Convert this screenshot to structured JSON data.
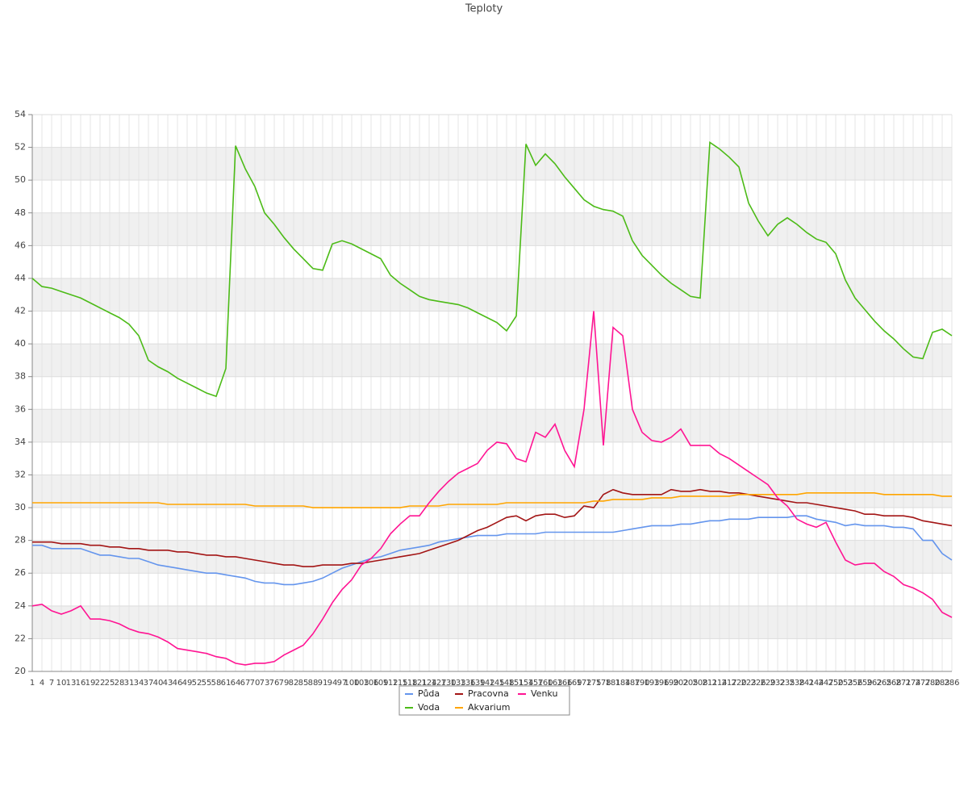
{
  "chart_data": {
    "type": "line",
    "title": "Teploty",
    "categories": [
      1,
      4,
      7,
      10,
      13,
      16,
      19,
      22,
      25,
      28,
      31,
      34,
      37,
      40,
      43,
      46,
      49,
      52,
      55,
      58,
      61,
      64,
      67,
      70,
      73,
      76,
      79,
      82,
      85,
      88,
      91,
      94,
      97,
      100,
      103,
      106,
      109,
      112,
      115,
      118,
      121,
      124,
      127,
      130,
      133,
      136,
      139,
      142,
      145,
      148,
      151,
      154,
      157,
      160,
      163,
      166,
      169,
      172,
      175,
      178,
      181,
      184,
      187,
      190,
      193,
      196,
      199,
      202,
      205,
      208,
      211,
      214,
      217,
      220,
      223,
      226,
      229,
      232,
      235,
      238,
      241,
      244,
      247,
      250,
      253,
      256,
      259,
      262,
      265,
      268,
      271,
      274,
      277,
      280,
      283,
      286
    ],
    "series": [
      {
        "name": "Půda",
        "color": "#6495ed",
        "values": [
          27.7,
          27.7,
          27.5,
          27.5,
          27.5,
          27.5,
          27.3,
          27.1,
          27.1,
          27.0,
          26.9,
          26.9,
          26.7,
          26.5,
          26.4,
          26.3,
          26.2,
          26.1,
          26.0,
          26.0,
          25.9,
          25.8,
          25.7,
          25.5,
          25.4,
          25.4,
          25.3,
          25.3,
          25.4,
          25.5,
          25.7,
          26.0,
          26.3,
          26.5,
          26.7,
          26.9,
          27.0,
          27.2,
          27.4,
          27.5,
          27.6,
          27.7,
          27.9,
          28.0,
          28.1,
          28.2,
          28.3,
          28.3,
          28.3,
          28.4,
          28.4,
          28.4,
          28.4,
          28.5,
          28.5,
          28.5,
          28.5,
          28.5,
          28.5,
          28.5,
          28.5,
          28.6,
          28.7,
          28.8,
          28.9,
          28.9,
          28.9,
          29.0,
          29.0,
          29.1,
          29.2,
          29.2,
          29.3,
          29.3,
          29.3,
          29.4,
          29.4,
          29.4,
          29.4,
          29.5,
          29.5,
          29.3,
          29.2,
          29.1,
          28.9,
          29.0,
          28.9,
          28.9,
          28.9,
          28.8,
          28.8,
          28.7,
          28.0,
          28.0,
          27.2,
          26.8
        ]
      },
      {
        "name": "Voda",
        "color": "#4cbb17",
        "values": [
          44.0,
          43.5,
          43.4,
          43.2,
          43.0,
          42.8,
          42.5,
          42.2,
          41.9,
          41.6,
          41.2,
          40.5,
          39.0,
          38.6,
          38.3,
          37.9,
          37.6,
          37.3,
          37.0,
          36.8,
          38.5,
          52.1,
          50.7,
          49.6,
          48.0,
          47.3,
          46.5,
          45.8,
          45.2,
          44.6,
          44.5,
          46.1,
          46.3,
          46.1,
          45.8,
          45.5,
          45.2,
          44.2,
          43.7,
          43.3,
          42.9,
          42.7,
          42.6,
          42.5,
          42.4,
          42.2,
          41.9,
          41.6,
          41.3,
          40.8,
          41.7,
          52.2,
          50.9,
          51.6,
          51.0,
          50.2,
          49.5,
          48.8,
          48.4,
          48.2,
          48.1,
          47.8,
          46.3,
          45.4,
          44.8,
          44.2,
          43.7,
          43.3,
          42.9,
          42.8,
          52.3,
          51.9,
          51.4,
          50.8,
          48.6,
          47.5,
          46.6,
          47.3,
          47.7,
          47.3,
          46.8,
          46.4,
          46.2,
          45.5,
          43.9,
          42.8,
          42.1,
          41.4,
          40.8,
          40.3,
          39.7,
          39.2,
          39.1,
          40.7,
          40.9,
          40.5
        ]
      },
      {
        "name": "Pracovna",
        "color": "#a31515",
        "values": [
          27.9,
          27.9,
          27.9,
          27.8,
          27.8,
          27.8,
          27.7,
          27.7,
          27.6,
          27.6,
          27.5,
          27.5,
          27.4,
          27.4,
          27.4,
          27.3,
          27.3,
          27.2,
          27.1,
          27.1,
          27.0,
          27.0,
          26.9,
          26.8,
          26.7,
          26.6,
          26.5,
          26.5,
          26.4,
          26.4,
          26.5,
          26.5,
          26.5,
          26.6,
          26.6,
          26.7,
          26.8,
          26.9,
          27.0,
          27.1,
          27.2,
          27.4,
          27.6,
          27.8,
          28.0,
          28.3,
          28.6,
          28.8,
          29.1,
          29.4,
          29.5,
          29.2,
          29.5,
          29.6,
          29.6,
          29.4,
          29.5,
          30.1,
          30.0,
          30.8,
          31.1,
          30.9,
          30.8,
          30.8,
          30.8,
          30.8,
          31.1,
          31.0,
          31.0,
          31.1,
          31.0,
          31.0,
          30.9,
          30.9,
          30.8,
          30.7,
          30.6,
          30.5,
          30.4,
          30.3,
          30.3,
          30.2,
          30.1,
          30.0,
          29.9,
          29.8,
          29.6,
          29.6,
          29.5,
          29.5,
          29.5,
          29.4,
          29.2,
          29.1,
          29.0,
          28.9
        ]
      },
      {
        "name": "Akvarium",
        "color": "#ffa500",
        "values": [
          30.3,
          30.3,
          30.3,
          30.3,
          30.3,
          30.3,
          30.3,
          30.3,
          30.3,
          30.3,
          30.3,
          30.3,
          30.3,
          30.3,
          30.2,
          30.2,
          30.2,
          30.2,
          30.2,
          30.2,
          30.2,
          30.2,
          30.2,
          30.1,
          30.1,
          30.1,
          30.1,
          30.1,
          30.1,
          30.0,
          30.0,
          30.0,
          30.0,
          30.0,
          30.0,
          30.0,
          30.0,
          30.0,
          30.0,
          30.1,
          30.1,
          30.1,
          30.1,
          30.2,
          30.2,
          30.2,
          30.2,
          30.2,
          30.2,
          30.3,
          30.3,
          30.3,
          30.3,
          30.3,
          30.3,
          30.3,
          30.3,
          30.3,
          30.4,
          30.4,
          30.5,
          30.5,
          30.5,
          30.5,
          30.6,
          30.6,
          30.6,
          30.7,
          30.7,
          30.7,
          30.7,
          30.7,
          30.7,
          30.8,
          30.8,
          30.8,
          30.8,
          30.8,
          30.8,
          30.8,
          30.9,
          30.9,
          30.9,
          30.9,
          30.9,
          30.9,
          30.9,
          30.9,
          30.8,
          30.8,
          30.8,
          30.8,
          30.8,
          30.8,
          30.7,
          30.7
        ]
      },
      {
        "name": "Venku",
        "color": "#ff1493",
        "values": [
          24.0,
          24.1,
          23.7,
          23.5,
          23.7,
          24.0,
          23.2,
          23.2,
          23.1,
          22.9,
          22.6,
          22.4,
          22.3,
          22.1,
          21.8,
          21.4,
          21.3,
          21.2,
          21.1,
          20.9,
          20.8,
          20.5,
          20.4,
          20.5,
          20.5,
          20.6,
          21.0,
          21.3,
          21.6,
          22.3,
          23.2,
          24.2,
          25.0,
          25.6,
          26.5,
          26.9,
          27.5,
          28.4,
          29.0,
          29.5,
          29.5,
          30.3,
          31.0,
          31.6,
          32.1,
          32.4,
          32.7,
          33.5,
          34.0,
          33.9,
          33.0,
          32.8,
          34.6,
          34.3,
          35.1,
          33.5,
          32.5,
          36.0,
          42.0,
          33.8,
          41.0,
          40.5,
          36.0,
          34.6,
          34.1,
          34.0,
          34.3,
          34.8,
          33.8,
          33.8,
          33.8,
          33.3,
          33.0,
          32.6,
          32.2,
          31.8,
          31.4,
          30.6,
          30.1,
          29.3,
          29.0,
          28.8,
          29.1,
          27.9,
          26.8,
          26.5,
          26.6,
          26.6,
          26.1,
          25.8,
          25.3,
          25.1,
          24.8,
          24.4,
          23.6,
          23.3
        ]
      }
    ],
    "ylim": [
      20,
      54
    ],
    "yticks": [
      20,
      22,
      24,
      26,
      28,
      30,
      32,
      34,
      36,
      38,
      40,
      42,
      44,
      46,
      48,
      50,
      52,
      54
    ],
    "grid": true
  }
}
